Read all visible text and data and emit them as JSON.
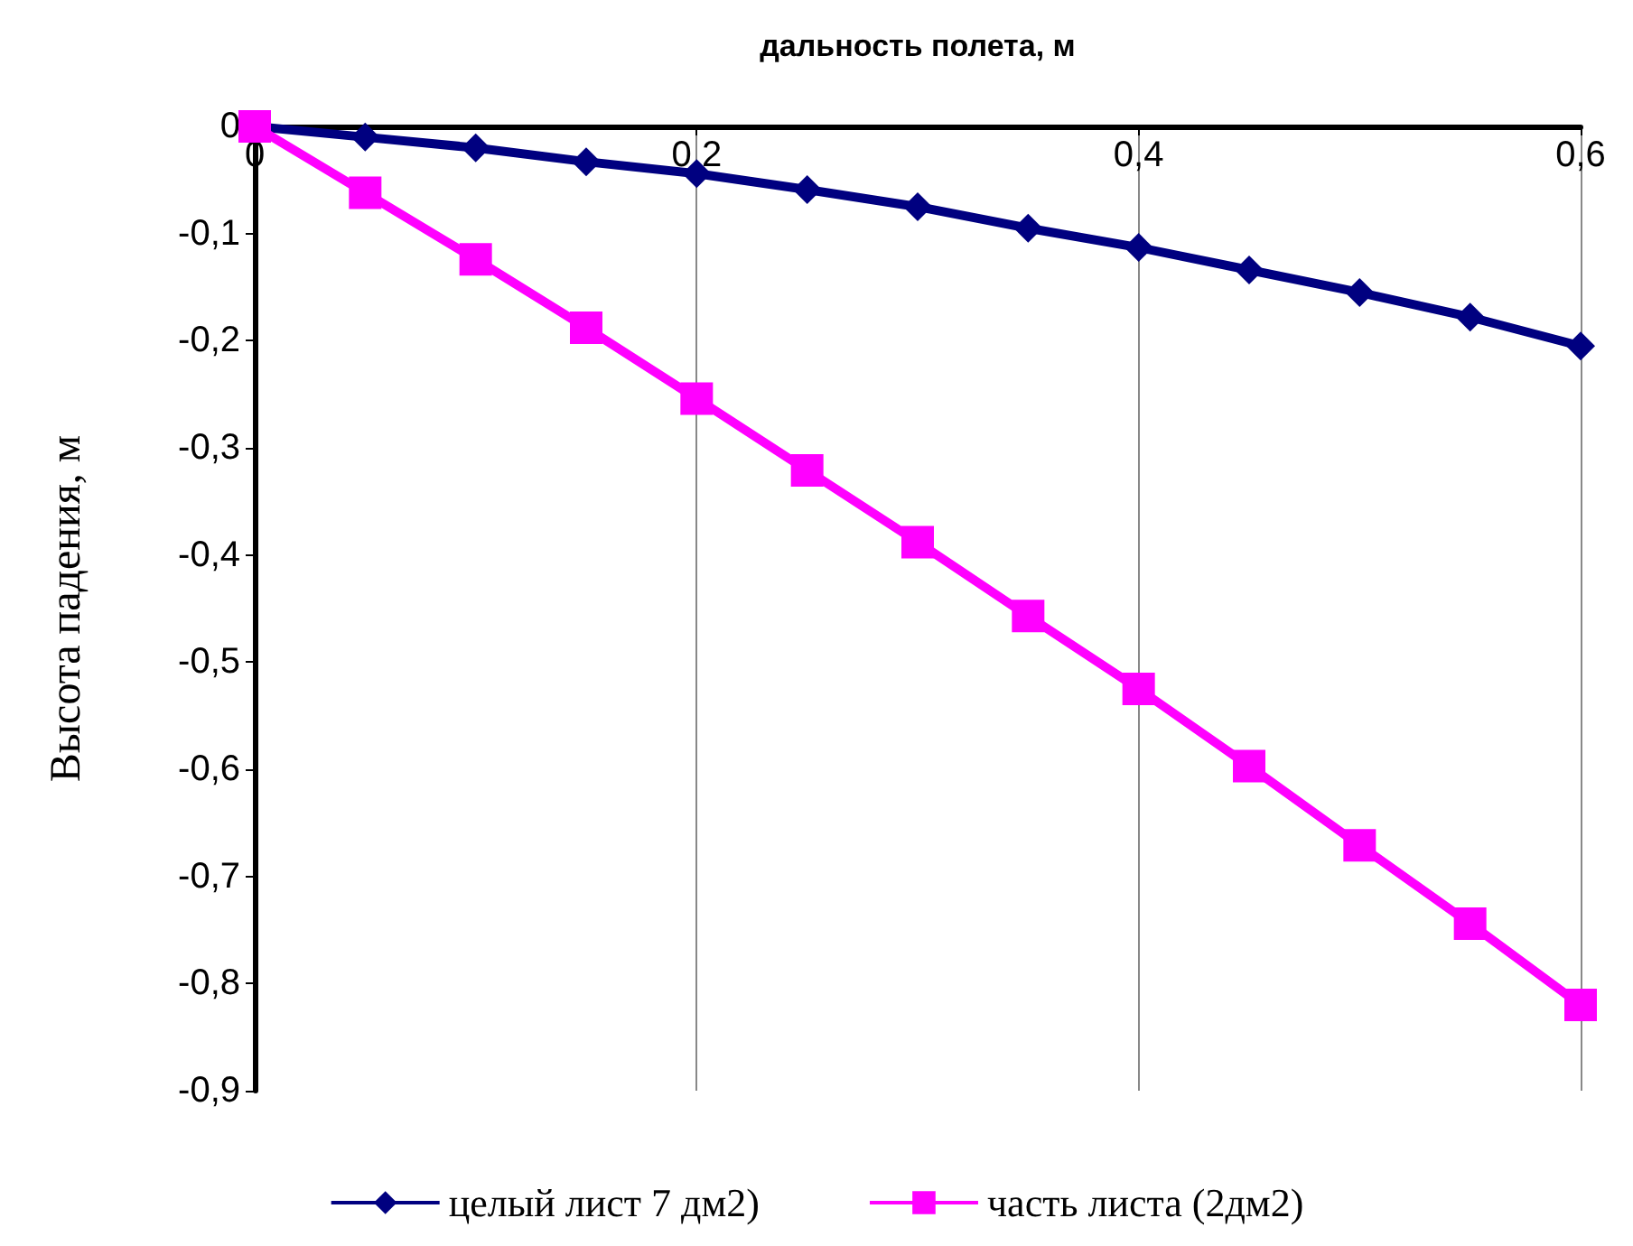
{
  "chart_data": {
    "type": "line",
    "xlabel": "дальность полета, м",
    "ylabel": "Высота падения, м",
    "x": [
      0,
      0.05,
      0.1,
      0.15,
      0.2,
      0.25,
      0.3,
      0.35,
      0.4,
      0.45,
      0.5,
      0.55,
      0.6
    ],
    "series": [
      {
        "name": "целый лист 7 дм2)",
        "color": "#000080",
        "marker": "diamond",
        "values": [
          0,
          -0.01,
          -0.02,
          -0.033,
          -0.044,
          -0.059,
          -0.075,
          -0.095,
          -0.113,
          -0.134,
          -0.155,
          -0.178,
          -0.205
        ]
      },
      {
        "name": "часть листа (2дм2)",
        "color": "#ff00ff",
        "marker": "square",
        "values": [
          0,
          -0.062,
          -0.124,
          -0.188,
          -0.254,
          -0.321,
          -0.388,
          -0.457,
          -0.525,
          -0.597,
          -0.671,
          -0.744,
          -0.82
        ]
      }
    ],
    "xlim": [
      0,
      0.6
    ],
    "xticks": [
      0,
      {
        "value": 0.2,
        "label": "0,2"
      },
      {
        "value": 0.4,
        "label": "0,4"
      },
      {
        "value": 0.6,
        "label": "0,6"
      }
    ],
    "ylim": [
      -0.9,
      0
    ],
    "yticks": [
      {
        "value": -0.9,
        "label": "-0,9"
      },
      {
        "value": -0.8,
        "label": "-0,8"
      },
      {
        "value": -0.7,
        "label": "-0,7"
      },
      {
        "value": -0.6,
        "label": "-0,6"
      },
      {
        "value": -0.5,
        "label": "-0,5"
      },
      {
        "value": -0.4,
        "label": "-0,4"
      },
      {
        "value": -0.3,
        "label": "-0,3"
      },
      {
        "value": -0.2,
        "label": "-0,2"
      },
      {
        "value": -0.1,
        "label": "-0,1"
      },
      0
    ],
    "grid": "x",
    "legend": "bottom",
    "line_style": "solid"
  }
}
